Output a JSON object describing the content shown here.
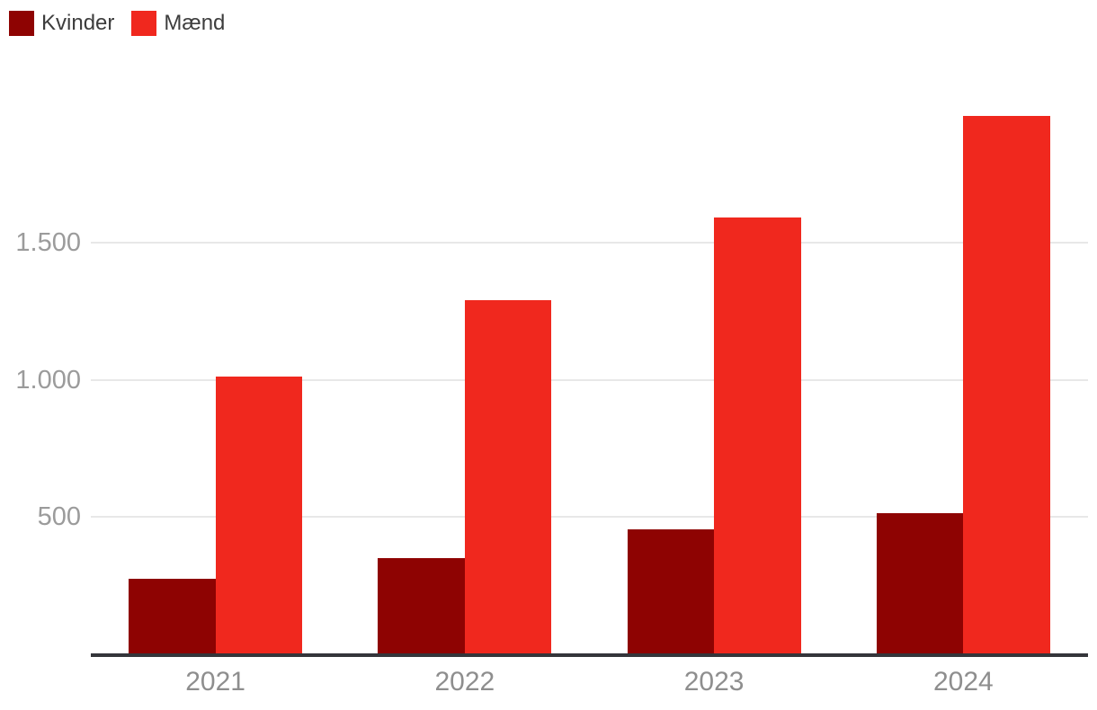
{
  "chart_data": {
    "type": "bar",
    "title": "",
    "categories": [
      "2021",
      "2022",
      "2023",
      "2024"
    ],
    "series": [
      {
        "name": "Kvinder",
        "color": "#8e0302",
        "values": [
          275,
          350,
          455,
          515
        ]
      },
      {
        "name": "Mænd",
        "color": "#f0281e",
        "values": [
          1010,
          1290,
          1590,
          1960
        ]
      }
    ],
    "xlabel": "",
    "ylabel": "",
    "ylim": [
      0,
      2000
    ],
    "yticks": [
      {
        "value": 500,
        "label": "500"
      },
      {
        "value": 1000,
        "label": "1.000"
      },
      {
        "value": 1500,
        "label": "1.500"
      }
    ],
    "grid": true,
    "legend_position": "top-left"
  },
  "colors": {
    "background": "#ffffff",
    "gridline": "#e8e8e8",
    "axis_line": "#34353a",
    "tick_label": "#9b9b9b",
    "x_label": "#8e8e8e",
    "legend_text": "#3d3d3d"
  }
}
